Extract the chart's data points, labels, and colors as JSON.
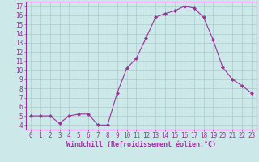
{
  "x": [
    0,
    1,
    2,
    3,
    4,
    5,
    6,
    7,
    8,
    9,
    10,
    11,
    12,
    13,
    14,
    15,
    16,
    17,
    18,
    19,
    20,
    21,
    22,
    23
  ],
  "y": [
    5.0,
    5.0,
    5.0,
    4.2,
    5.0,
    5.2,
    5.2,
    4.0,
    4.0,
    7.5,
    10.2,
    11.3,
    13.5,
    15.8,
    16.2,
    16.5,
    17.0,
    16.8,
    15.8,
    13.3,
    10.3,
    9.0,
    8.3,
    7.5
  ],
  "line_color": "#993399",
  "marker": "D",
  "marker_size": 2.0,
  "background_color": "#cce8e8",
  "grid_color": "#aacccc",
  "xlabel": "Windchill (Refroidissement éolien,°C)",
  "ylabel_ticks": [
    4,
    5,
    6,
    7,
    8,
    9,
    10,
    11,
    12,
    13,
    14,
    15,
    16,
    17
  ],
  "xlim": [
    -0.5,
    23.5
  ],
  "ylim": [
    3.5,
    17.5
  ],
  "xlabel_fontsize": 6.0,
  "tick_fontsize": 5.5
}
